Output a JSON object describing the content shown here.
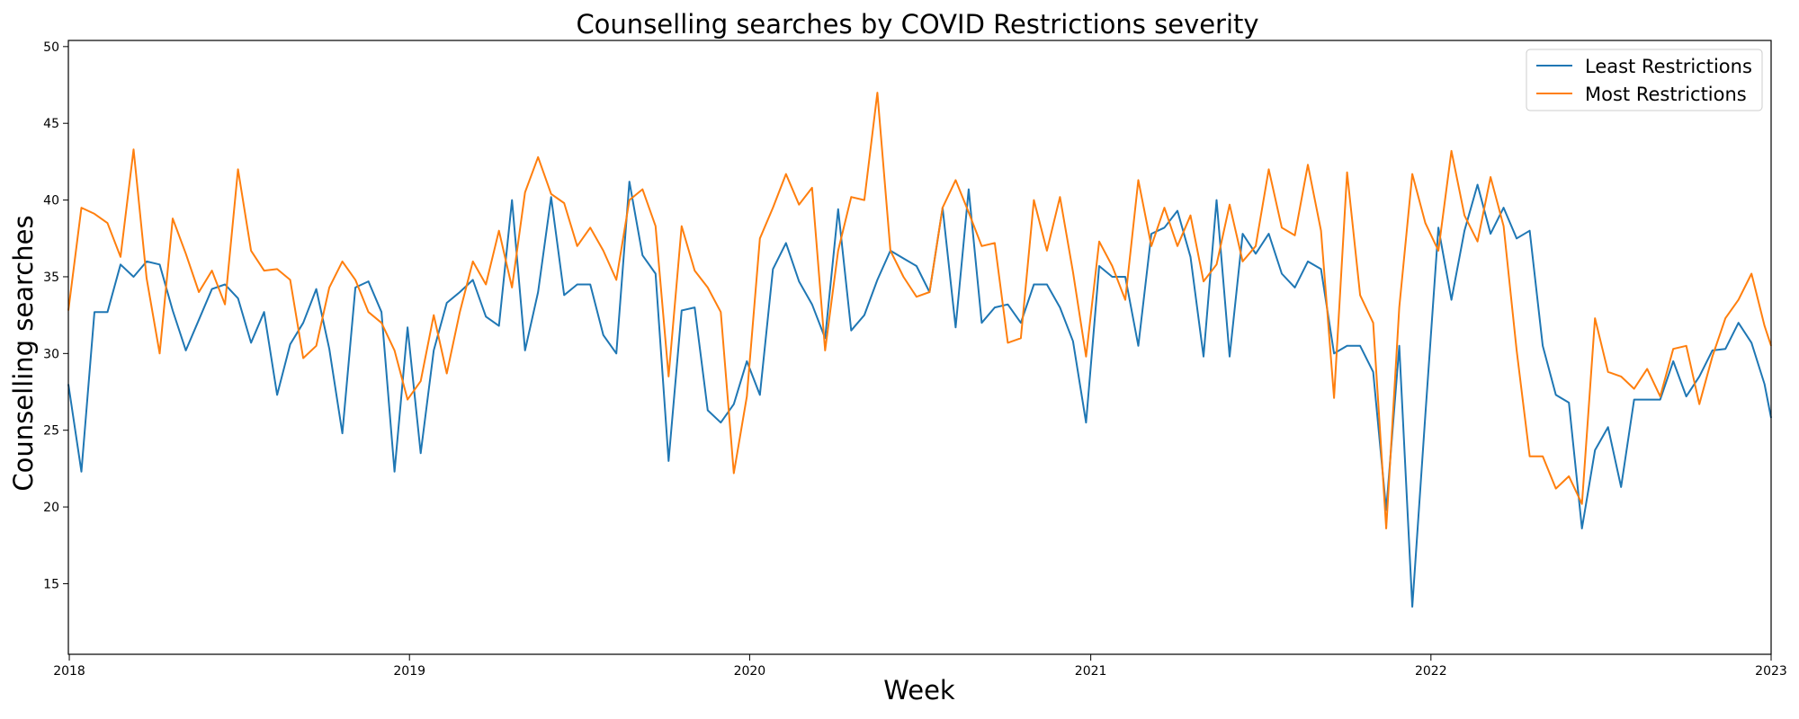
{
  "chart_data": {
    "type": "line",
    "title": "Counselling searches by COVID Restrictions severity",
    "xlabel": "Week",
    "ylabel": "Counselling searches",
    "x_range": [
      "2017-12-31",
      "2023-01-01"
    ],
    "ylim": [
      10.4,
      50.4
    ],
    "y_ticks": [
      15,
      20,
      25,
      30,
      35,
      40,
      45,
      50
    ],
    "x_ticks": [
      {
        "date": "2018-01-01",
        "label": "2018"
      },
      {
        "date": "2019-01-01",
        "label": "2019"
      },
      {
        "date": "2020-01-01",
        "label": "2020"
      },
      {
        "date": "2021-01-01",
        "label": "2021"
      },
      {
        "date": "2022-01-01",
        "label": "2022"
      },
      {
        "date": "2023-01-01",
        "label": "2023"
      }
    ],
    "grid": false,
    "legend": "top-right",
    "series": [
      {
        "name": "Least Restrictions",
        "color": "#1f77b4",
        "points": [
          [
            "2017-12-31",
            28.0
          ],
          [
            "2018-01-14",
            22.3
          ],
          [
            "2018-01-28",
            32.7
          ],
          [
            "2018-02-11",
            32.7
          ],
          [
            "2018-02-25",
            35.8
          ],
          [
            "2018-03-11",
            35.0
          ],
          [
            "2018-03-25",
            36.0
          ],
          [
            "2018-04-08",
            35.8
          ],
          [
            "2018-04-22",
            32.8
          ],
          [
            "2018-05-06",
            30.2
          ],
          [
            "2018-05-20",
            32.2
          ],
          [
            "2018-06-03",
            34.2
          ],
          [
            "2018-06-17",
            34.5
          ],
          [
            "2018-07-01",
            33.6
          ],
          [
            "2018-07-15",
            30.7
          ],
          [
            "2018-07-29",
            32.7
          ],
          [
            "2018-08-12",
            27.3
          ],
          [
            "2018-08-26",
            30.6
          ],
          [
            "2018-09-09",
            32.0
          ],
          [
            "2018-09-23",
            34.2
          ],
          [
            "2018-10-07",
            30.3
          ],
          [
            "2018-10-21",
            24.8
          ],
          [
            "2018-11-04",
            34.3
          ],
          [
            "2018-11-18",
            34.7
          ],
          [
            "2018-12-02",
            32.7
          ],
          [
            "2018-12-16",
            22.3
          ],
          [
            "2018-12-30",
            31.7
          ],
          [
            "2019-01-13",
            23.5
          ],
          [
            "2019-01-27",
            30.2
          ],
          [
            "2019-02-10",
            33.3
          ],
          [
            "2019-02-24",
            34.0
          ],
          [
            "2019-03-10",
            34.8
          ],
          [
            "2019-03-24",
            32.4
          ],
          [
            "2019-04-07",
            31.8
          ],
          [
            "2019-04-21",
            40.0
          ],
          [
            "2019-05-05",
            30.2
          ],
          [
            "2019-05-19",
            34.0
          ],
          [
            "2019-06-02",
            40.2
          ],
          [
            "2019-06-16",
            33.8
          ],
          [
            "2019-06-30",
            34.5
          ],
          [
            "2019-07-14",
            34.5
          ],
          [
            "2019-07-28",
            31.2
          ],
          [
            "2019-08-11",
            30.0
          ],
          [
            "2019-08-25",
            41.2
          ],
          [
            "2019-09-08",
            36.4
          ],
          [
            "2019-09-22",
            35.2
          ],
          [
            "2019-10-06",
            23.0
          ],
          [
            "2019-10-20",
            32.8
          ],
          [
            "2019-11-03",
            33.0
          ],
          [
            "2019-11-17",
            26.3
          ],
          [
            "2019-12-01",
            25.5
          ],
          [
            "2019-12-15",
            26.7
          ],
          [
            "2019-12-29",
            29.5
          ],
          [
            "2020-01-12",
            27.3
          ],
          [
            "2020-01-26",
            35.5
          ],
          [
            "2020-02-09",
            37.2
          ],
          [
            "2020-02-23",
            34.7
          ],
          [
            "2020-03-08",
            33.2
          ],
          [
            "2020-03-22",
            31.0
          ],
          [
            "2020-04-05",
            39.4
          ],
          [
            "2020-04-19",
            31.5
          ],
          [
            "2020-05-03",
            32.5
          ],
          [
            "2020-05-17",
            34.8
          ],
          [
            "2020-05-31",
            36.7
          ],
          [
            "2020-06-14",
            36.2
          ],
          [
            "2020-06-28",
            35.7
          ],
          [
            "2020-07-12",
            34.0
          ],
          [
            "2020-07-26",
            39.5
          ],
          [
            "2020-08-09",
            31.7
          ],
          [
            "2020-08-23",
            40.7
          ],
          [
            "2020-09-06",
            32.0
          ],
          [
            "2020-09-20",
            33.0
          ],
          [
            "2020-10-04",
            33.2
          ],
          [
            "2020-10-18",
            32.0
          ],
          [
            "2020-11-01",
            34.5
          ],
          [
            "2020-11-15",
            34.5
          ],
          [
            "2020-11-29",
            33.0
          ],
          [
            "2020-12-13",
            30.8
          ],
          [
            "2020-12-27",
            25.5
          ],
          [
            "2021-01-10",
            35.7
          ],
          [
            "2021-01-24",
            35.0
          ],
          [
            "2021-02-07",
            35.0
          ],
          [
            "2021-02-21",
            30.5
          ],
          [
            "2021-03-07",
            37.8
          ],
          [
            "2021-03-21",
            38.2
          ],
          [
            "2021-04-04",
            39.3
          ],
          [
            "2021-04-18",
            36.3
          ],
          [
            "2021-05-02",
            29.8
          ],
          [
            "2021-05-16",
            40.0
          ],
          [
            "2021-05-30",
            29.8
          ],
          [
            "2021-06-13",
            37.8
          ],
          [
            "2021-06-27",
            36.5
          ],
          [
            "2021-07-11",
            37.8
          ],
          [
            "2021-07-25",
            35.2
          ],
          [
            "2021-08-08",
            34.3
          ],
          [
            "2021-08-22",
            36.0
          ],
          [
            "2021-09-05",
            35.5
          ],
          [
            "2021-09-19",
            30.0
          ],
          [
            "2021-10-03",
            30.5
          ],
          [
            "2021-10-17",
            30.5
          ],
          [
            "2021-10-31",
            28.8
          ],
          [
            "2021-11-14",
            19.8
          ],
          [
            "2021-11-28",
            30.5
          ],
          [
            "2021-12-12",
            13.5
          ],
          [
            "2021-12-26",
            26.0
          ],
          [
            "2022-01-09",
            38.2
          ],
          [
            "2022-01-23",
            33.5
          ],
          [
            "2022-02-06",
            38.0
          ],
          [
            "2022-02-20",
            41.0
          ],
          [
            "2022-03-06",
            37.8
          ],
          [
            "2022-03-20",
            39.5
          ],
          [
            "2022-04-03",
            37.5
          ],
          [
            "2022-04-17",
            38.0
          ],
          [
            "2022-05-01",
            30.5
          ],
          [
            "2022-05-15",
            27.3
          ],
          [
            "2022-05-29",
            26.8
          ],
          [
            "2022-06-12",
            18.6
          ],
          [
            "2022-06-26",
            23.7
          ],
          [
            "2022-07-10",
            25.2
          ],
          [
            "2022-07-24",
            21.3
          ],
          [
            "2022-08-07",
            27.0
          ],
          [
            "2022-08-21",
            27.0
          ],
          [
            "2022-09-04",
            27.0
          ],
          [
            "2022-09-18",
            29.5
          ],
          [
            "2022-10-02",
            27.2
          ],
          [
            "2022-10-16",
            28.5
          ],
          [
            "2022-10-30",
            30.2
          ],
          [
            "2022-11-13",
            30.3
          ],
          [
            "2022-11-27",
            32.0
          ],
          [
            "2022-12-11",
            30.7
          ],
          [
            "2022-12-25",
            28.0
          ],
          [
            "2023-01-01",
            25.8
          ]
        ]
      },
      {
        "name": "Most Restrictions",
        "color": "#ff7f0e",
        "points": [
          [
            "2017-12-31",
            32.8
          ],
          [
            "2018-01-14",
            39.5
          ],
          [
            "2018-01-28",
            39.1
          ],
          [
            "2018-02-11",
            38.5
          ],
          [
            "2018-02-25",
            36.3
          ],
          [
            "2018-03-11",
            43.3
          ],
          [
            "2018-03-25",
            34.9
          ],
          [
            "2018-04-08",
            30.0
          ],
          [
            "2018-04-22",
            38.8
          ],
          [
            "2018-05-06",
            36.5
          ],
          [
            "2018-05-20",
            34.0
          ],
          [
            "2018-06-03",
            35.4
          ],
          [
            "2018-06-17",
            33.2
          ],
          [
            "2018-07-01",
            42.0
          ],
          [
            "2018-07-15",
            36.7
          ],
          [
            "2018-07-29",
            35.4
          ],
          [
            "2018-08-12",
            35.5
          ],
          [
            "2018-08-26",
            34.8
          ],
          [
            "2018-09-09",
            29.7
          ],
          [
            "2018-09-23",
            30.5
          ],
          [
            "2018-10-07",
            34.3
          ],
          [
            "2018-10-21",
            36.0
          ],
          [
            "2018-11-04",
            34.8
          ],
          [
            "2018-11-18",
            32.7
          ],
          [
            "2018-12-02",
            32.0
          ],
          [
            "2018-12-16",
            30.2
          ],
          [
            "2018-12-30",
            27.0
          ],
          [
            "2019-01-13",
            28.2
          ],
          [
            "2019-01-27",
            32.5
          ],
          [
            "2019-02-10",
            28.7
          ],
          [
            "2019-02-24",
            32.7
          ],
          [
            "2019-03-10",
            36.0
          ],
          [
            "2019-03-24",
            34.5
          ],
          [
            "2019-04-07",
            38.0
          ],
          [
            "2019-04-21",
            34.3
          ],
          [
            "2019-05-05",
            40.5
          ],
          [
            "2019-05-19",
            42.8
          ],
          [
            "2019-06-02",
            40.4
          ],
          [
            "2019-06-16",
            39.8
          ],
          [
            "2019-06-30",
            37.0
          ],
          [
            "2019-07-14",
            38.2
          ],
          [
            "2019-07-28",
            36.7
          ],
          [
            "2019-08-11",
            34.8
          ],
          [
            "2019-08-25",
            40.0
          ],
          [
            "2019-09-08",
            40.7
          ],
          [
            "2019-09-22",
            38.3
          ],
          [
            "2019-10-06",
            28.5
          ],
          [
            "2019-10-20",
            38.3
          ],
          [
            "2019-11-03",
            35.4
          ],
          [
            "2019-11-17",
            34.3
          ],
          [
            "2019-12-01",
            32.7
          ],
          [
            "2019-12-15",
            22.2
          ],
          [
            "2019-12-29",
            27.2
          ],
          [
            "2020-01-12",
            37.5
          ],
          [
            "2020-01-26",
            39.5
          ],
          [
            "2020-02-09",
            41.7
          ],
          [
            "2020-02-23",
            39.7
          ],
          [
            "2020-03-08",
            40.8
          ],
          [
            "2020-03-22",
            30.2
          ],
          [
            "2020-04-05",
            36.7
          ],
          [
            "2020-04-19",
            40.2
          ],
          [
            "2020-05-03",
            40.0
          ],
          [
            "2020-05-17",
            47.0
          ],
          [
            "2020-05-31",
            36.7
          ],
          [
            "2020-06-14",
            35.0
          ],
          [
            "2020-06-28",
            33.7
          ],
          [
            "2020-07-12",
            34.0
          ],
          [
            "2020-07-26",
            39.5
          ],
          [
            "2020-08-09",
            41.3
          ],
          [
            "2020-08-23",
            39.2
          ],
          [
            "2020-09-06",
            37.0
          ],
          [
            "2020-09-20",
            37.2
          ],
          [
            "2020-10-04",
            30.7
          ],
          [
            "2020-10-18",
            31.0
          ],
          [
            "2020-11-01",
            40.0
          ],
          [
            "2020-11-15",
            36.7
          ],
          [
            "2020-11-29",
            40.2
          ],
          [
            "2020-12-13",
            35.3
          ],
          [
            "2020-12-27",
            29.8
          ],
          [
            "2021-01-10",
            37.3
          ],
          [
            "2021-01-24",
            35.7
          ],
          [
            "2021-02-07",
            33.5
          ],
          [
            "2021-02-21",
            41.3
          ],
          [
            "2021-03-07",
            37.0
          ],
          [
            "2021-03-21",
            39.5
          ],
          [
            "2021-04-04",
            37.0
          ],
          [
            "2021-04-18",
            39.0
          ],
          [
            "2021-05-02",
            34.7
          ],
          [
            "2021-05-16",
            35.8
          ],
          [
            "2021-05-30",
            39.7
          ],
          [
            "2021-06-13",
            36.0
          ],
          [
            "2021-06-27",
            37.0
          ],
          [
            "2021-07-11",
            42.0
          ],
          [
            "2021-07-25",
            38.2
          ],
          [
            "2021-08-08",
            37.7
          ],
          [
            "2021-08-22",
            42.3
          ],
          [
            "2021-09-05",
            38.0
          ],
          [
            "2021-09-19",
            27.1
          ],
          [
            "2021-10-03",
            41.8
          ],
          [
            "2021-10-17",
            33.8
          ],
          [
            "2021-10-31",
            32.0
          ],
          [
            "2021-11-14",
            18.6
          ],
          [
            "2021-11-28",
            33.0
          ],
          [
            "2021-12-12",
            41.7
          ],
          [
            "2021-12-26",
            38.5
          ],
          [
            "2022-01-09",
            36.7
          ],
          [
            "2022-01-23",
            43.2
          ],
          [
            "2022-02-06",
            39.0
          ],
          [
            "2022-02-20",
            37.3
          ],
          [
            "2022-03-06",
            41.5
          ],
          [
            "2022-03-20",
            38.3
          ],
          [
            "2022-04-03",
            30.2
          ],
          [
            "2022-04-17",
            23.3
          ],
          [
            "2022-05-01",
            23.3
          ],
          [
            "2022-05-15",
            21.2
          ],
          [
            "2022-05-29",
            22.0
          ],
          [
            "2022-06-12",
            20.2
          ],
          [
            "2022-06-26",
            32.3
          ],
          [
            "2022-07-10",
            28.8
          ],
          [
            "2022-07-24",
            28.5
          ],
          [
            "2022-08-07",
            27.7
          ],
          [
            "2022-08-21",
            29.0
          ],
          [
            "2022-09-04",
            27.2
          ],
          [
            "2022-09-18",
            30.3
          ],
          [
            "2022-10-02",
            30.5
          ],
          [
            "2022-10-16",
            26.7
          ],
          [
            "2022-10-30",
            29.8
          ],
          [
            "2022-11-13",
            32.3
          ],
          [
            "2022-11-27",
            33.5
          ],
          [
            "2022-12-11",
            35.2
          ],
          [
            "2022-12-25",
            31.8
          ],
          [
            "2023-01-01",
            30.5
          ]
        ]
      }
    ]
  }
}
